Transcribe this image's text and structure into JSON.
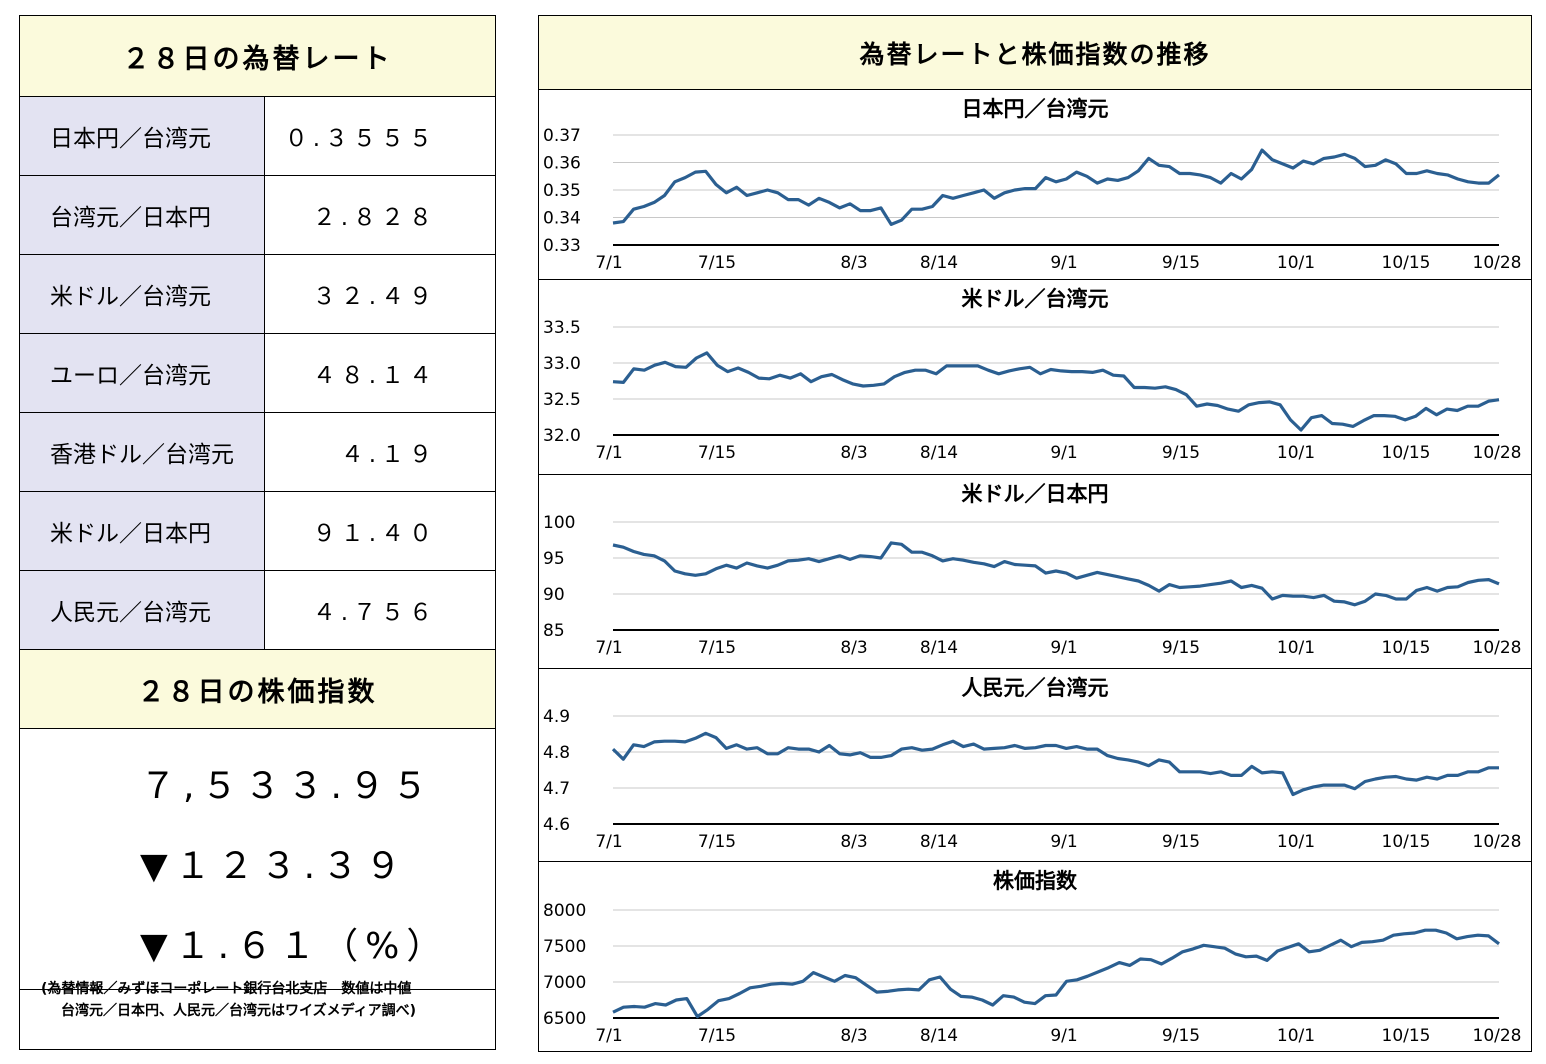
{
  "left": {
    "rates_title": "２８日の為替レート",
    "rates": [
      {
        "label": "日本円／台湾元",
        "value": "０.３５５５"
      },
      {
        "label": "台湾元／日本円",
        "value": "２.８２８"
      },
      {
        "label": "米ドル／台湾元",
        "value": "３２.４９"
      },
      {
        "label": "ユーロ／台湾元",
        "value": "４８.１４"
      },
      {
        "label": "香港ドル／台湾元",
        "value": "４.１９"
      },
      {
        "label": "米ドル／日本円",
        "value": "９１.４０"
      },
      {
        "label": "人民元／台湾元",
        "value": "４.７５６"
      }
    ],
    "stock_title": "２８日の株価指数",
    "stock_value": "７,５３３.９５",
    "stock_change": "▼１２３.３９",
    "stock_change_pct": "▼１.６１（%）",
    "source_line1": "(為替情報／みずほコーポレート銀行台北支店　数値は中値",
    "source_line2": "台湾元／日本円、人民元／台湾元はワイズメディア調べ)"
  },
  "right": {
    "title": "為替レートと株価指数の推移"
  },
  "chart_data": [
    {
      "type": "line",
      "title": "日本円／台湾元",
      "x_tick_labels": [
        "7/1",
        "7/15",
        "8/3",
        "8/14",
        "9/1",
        "9/15",
        "10/1",
        "10/15",
        "10/28"
      ],
      "ylim": [
        0.33,
        0.37
      ],
      "y_ticks": [
        "0.33",
        "0.34",
        "0.35",
        "0.36",
        "0.37"
      ],
      "grid": true,
      "color": "#2b5f91",
      "values": [
        0.338,
        0.3385,
        0.343,
        0.344,
        0.3455,
        0.348,
        0.353,
        0.3545,
        0.3565,
        0.3568,
        0.352,
        0.349,
        0.351,
        0.348,
        0.349,
        0.35,
        0.349,
        0.3465,
        0.3465,
        0.3445,
        0.347,
        0.3455,
        0.3435,
        0.345,
        0.3425,
        0.3425,
        0.3435,
        0.3375,
        0.339,
        0.343,
        0.343,
        0.344,
        0.348,
        0.347,
        0.348,
        0.349,
        0.35,
        0.347,
        0.349,
        0.35,
        0.3505,
        0.3505,
        0.3545,
        0.353,
        0.354,
        0.3565,
        0.355,
        0.3525,
        0.354,
        0.3535,
        0.3545,
        0.357,
        0.3615,
        0.359,
        0.3585,
        0.356,
        0.356,
        0.3555,
        0.3545,
        0.3525,
        0.356,
        0.354,
        0.3575,
        0.3645,
        0.361,
        0.3595,
        0.358,
        0.3605,
        0.3595,
        0.3615,
        0.362,
        0.363,
        0.3615,
        0.3585,
        0.359,
        0.361,
        0.3595,
        0.356,
        0.356,
        0.357,
        0.356,
        0.3555,
        0.354,
        0.353,
        0.3525,
        0.3525,
        0.3555
      ]
    },
    {
      "type": "line",
      "title": "米ドル／台湾元",
      "x_tick_labels": [
        "7/1",
        "7/15",
        "8/3",
        "8/14",
        "9/1",
        "9/15",
        "10/1",
        "10/15",
        "10/28"
      ],
      "ylim": [
        32.0,
        33.5
      ],
      "y_ticks": [
        "32.0",
        "32.5",
        "33.0",
        "33.5"
      ],
      "grid": true,
      "color": "#2b5f91",
      "values": [
        32.74,
        32.73,
        32.92,
        32.9,
        32.97,
        33.01,
        32.95,
        32.94,
        33.07,
        33.14,
        32.97,
        32.88,
        32.93,
        32.87,
        32.79,
        32.78,
        32.83,
        32.79,
        32.85,
        32.74,
        32.81,
        32.84,
        32.77,
        32.71,
        32.68,
        32.69,
        32.71,
        32.81,
        32.87,
        32.9,
        32.9,
        32.85,
        32.96,
        32.96,
        32.96,
        32.96,
        32.9,
        32.85,
        32.89,
        32.92,
        32.94,
        32.85,
        32.91,
        32.89,
        32.88,
        32.88,
        32.87,
        32.9,
        32.83,
        32.82,
        32.66,
        32.66,
        32.65,
        32.67,
        32.63,
        32.56,
        32.4,
        32.43,
        32.41,
        32.36,
        32.33,
        32.42,
        32.45,
        32.46,
        32.42,
        32.21,
        32.07,
        32.24,
        32.27,
        32.16,
        32.15,
        32.12,
        32.2,
        32.27,
        32.27,
        32.26,
        32.21,
        32.26,
        32.37,
        32.28,
        32.36,
        32.34,
        32.4,
        32.4,
        32.47,
        32.49
      ]
    },
    {
      "type": "line",
      "title": "米ドル／日本円",
      "x_tick_labels": [
        "7/1",
        "7/15",
        "8/3",
        "8/14",
        "9/1",
        "9/15",
        "10/1",
        "10/15",
        "10/28"
      ],
      "ylim": [
        85,
        100
      ],
      "y_ticks": [
        "85",
        "90",
        "95",
        "100"
      ],
      "grid": true,
      "color": "#2b5f91",
      "values": [
        96.8,
        96.5,
        95.9,
        95.5,
        95.3,
        94.6,
        93.2,
        92.8,
        92.6,
        92.8,
        93.5,
        94.0,
        93.6,
        94.3,
        93.9,
        93.6,
        94.0,
        94.6,
        94.7,
        94.9,
        94.5,
        94.9,
        95.3,
        94.8,
        95.3,
        95.2,
        95.0,
        97.1,
        96.9,
        95.8,
        95.8,
        95.3,
        94.6,
        94.9,
        94.7,
        94.4,
        94.2,
        93.8,
        94.5,
        94.1,
        94.0,
        93.9,
        92.9,
        93.2,
        92.9,
        92.2,
        92.6,
        93.0,
        92.7,
        92.4,
        92.1,
        91.8,
        91.2,
        90.4,
        91.3,
        90.9,
        91.0,
        91.1,
        91.3,
        91.5,
        91.8,
        90.9,
        91.2,
        90.8,
        89.3,
        89.8,
        89.7,
        89.7,
        89.5,
        89.8,
        89.0,
        88.9,
        88.5,
        89.0,
        90.0,
        89.8,
        89.3,
        89.3,
        90.5,
        90.9,
        90.4,
        90.9,
        91.0,
        91.6,
        91.9,
        92.0,
        91.4
      ]
    },
    {
      "type": "line",
      "title": "人民元／台湾元",
      "x_tick_labels": [
        "7/1",
        "7/15",
        "8/3",
        "8/14",
        "9/1",
        "9/15",
        "10/1",
        "10/15",
        "10/28"
      ],
      "ylim": [
        4.6,
        4.9
      ],
      "y_ticks": [
        "4.6",
        "4.7",
        "4.8",
        "4.9"
      ],
      "grid": true,
      "color": "#2b5f91",
      "values": [
        4.808,
        4.78,
        4.82,
        4.815,
        4.828,
        4.83,
        4.83,
        4.828,
        4.838,
        4.852,
        4.84,
        4.81,
        4.82,
        4.808,
        4.812,
        4.795,
        4.795,
        4.812,
        4.808,
        4.808,
        4.8,
        4.818,
        4.795,
        4.792,
        4.798,
        4.785,
        4.785,
        4.79,
        4.808,
        4.812,
        4.805,
        4.808,
        4.82,
        4.83,
        4.815,
        4.822,
        4.808,
        4.81,
        4.812,
        4.818,
        4.81,
        4.812,
        4.818,
        4.818,
        4.81,
        4.815,
        4.808,
        4.808,
        4.79,
        4.782,
        4.778,
        4.772,
        4.762,
        4.778,
        4.772,
        4.745,
        4.745,
        4.745,
        4.74,
        4.745,
        4.735,
        4.735,
        4.76,
        4.742,
        4.745,
        4.742,
        4.682,
        4.695,
        4.703,
        4.708,
        4.708,
        4.708,
        4.698,
        4.718,
        4.725,
        4.73,
        4.732,
        4.725,
        4.722,
        4.73,
        4.725,
        4.735,
        4.735,
        4.745,
        4.745,
        4.756,
        4.756
      ]
    },
    {
      "type": "line",
      "title": "株価指数",
      "x_tick_labels": [
        "7/1",
        "7/15",
        "8/3",
        "8/14",
        "9/1",
        "9/15",
        "10/1",
        "10/15",
        "10/28"
      ],
      "ylim": [
        6500,
        8000
      ],
      "y_ticks": [
        "6500",
        "7000",
        "7500",
        "8000"
      ],
      "grid": true,
      "color": "#2b5f91",
      "values": [
        6580,
        6650,
        6660,
        6650,
        6700,
        6680,
        6750,
        6770,
        6520,
        6620,
        6740,
        6770,
        6840,
        6920,
        6940,
        6970,
        6980,
        6970,
        7010,
        7130,
        7070,
        7010,
        7090,
        7060,
        6960,
        6860,
        6870,
        6890,
        6900,
        6890,
        7030,
        7070,
        6900,
        6800,
        6790,
        6750,
        6680,
        6810,
        6790,
        6720,
        6700,
        6810,
        6820,
        7010,
        7030,
        7080,
        7140,
        7200,
        7270,
        7230,
        7320,
        7310,
        7250,
        7330,
        7420,
        7460,
        7510,
        7490,
        7470,
        7390,
        7350,
        7360,
        7300,
        7430,
        7480,
        7530,
        7420,
        7440,
        7510,
        7580,
        7490,
        7550,
        7560,
        7580,
        7650,
        7670,
        7680,
        7720,
        7720,
        7680,
        7600,
        7630,
        7650,
        7640,
        7530
      ]
    }
  ]
}
